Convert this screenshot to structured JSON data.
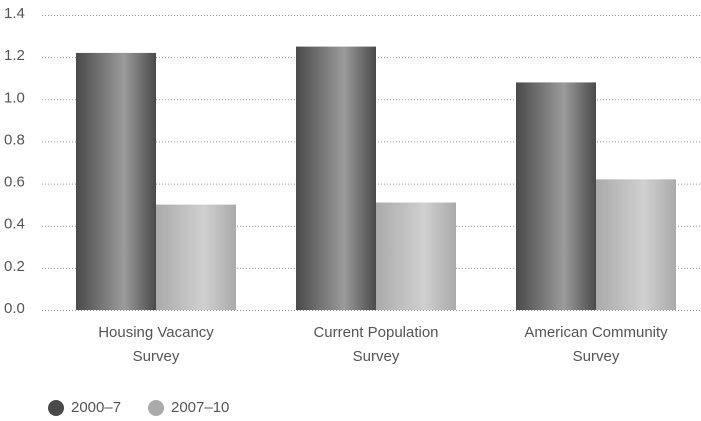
{
  "chart_data": {
    "type": "bar",
    "categories": [
      "Housing Vacancy Survey",
      "Current Population Survey",
      "American Community Survey"
    ],
    "series": [
      {
        "name": "2000–7",
        "color": "#4a4a4a",
        "values": [
          1.22,
          1.25,
          1.08
        ]
      },
      {
        "name": "2007–10",
        "color": "#aaaaaa",
        "values": [
          0.5,
          0.51,
          0.62
        ]
      }
    ],
    "ylim": [
      0,
      1.4
    ],
    "yticks": [
      {
        "value": 0,
        "label": "0.0"
      },
      0.2,
      0.4,
      0.6,
      0.8,
      {
        "value": 1,
        "label": "1.0"
      },
      1.2,
      1.4
    ],
    "grid": true,
    "legend": "bottom"
  }
}
